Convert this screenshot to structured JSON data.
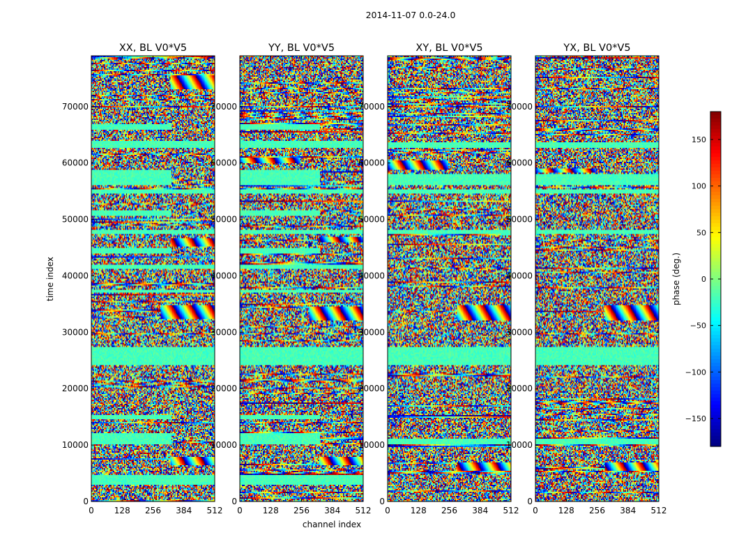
{
  "chart_data": {
    "type": "heatmap",
    "title": "2014-11-07 0.0-24.0",
    "xlabel": "channel index",
    "ylabel": "time index",
    "colorbar_label": "phase (deg.)",
    "colormap": "jet",
    "xlim": [
      0,
      512
    ],
    "ylim": [
      0,
      79000
    ],
    "color_range": [
      -180,
      180
    ],
    "x_ticks": [
      "0",
      "128",
      "256",
      "384",
      "512"
    ],
    "y_ticks": [
      "0",
      "10000",
      "20000",
      "30000",
      "40000",
      "50000",
      "60000",
      "70000"
    ],
    "colorbar_ticks": [
      "150",
      "100",
      "50",
      "0",
      "−50",
      "−100",
      "−150"
    ],
    "panels": [
      {
        "title": "XX, BL V0*V5",
        "flat_bands": [
          [
            2900,
            4600,
            0,
            512
          ],
          [
            10000,
            12200,
            0,
            330
          ],
          [
            14500,
            15300,
            0,
            330
          ],
          [
            24300,
            27500,
            0,
            512
          ],
          [
            37000,
            37600,
            0,
            512
          ],
          [
            41300,
            42000,
            0,
            512
          ],
          [
            43900,
            45000,
            0,
            330
          ],
          [
            47500,
            48200,
            0,
            512
          ],
          [
            50500,
            51700,
            0,
            330
          ],
          [
            54500,
            55200,
            0,
            512
          ],
          [
            56000,
            58800,
            0,
            330
          ],
          [
            62800,
            63900,
            0,
            512
          ],
          [
            65800,
            67000,
            0,
            330
          ]
        ],
        "fringes": [
          [
            32300,
            34800,
            290,
            512
          ],
          [
            45300,
            46600,
            330,
            512
          ],
          [
            6500,
            7800,
            330,
            512
          ],
          [
            73000,
            75500,
            330,
            512
          ]
        ]
      },
      {
        "title": "YY, BL V0*V5",
        "flat_bands": [
          [
            2900,
            4600,
            0,
            512
          ],
          [
            10000,
            12200,
            0,
            330
          ],
          [
            14500,
            15300,
            0,
            330
          ],
          [
            24300,
            27500,
            0,
            512
          ],
          [
            37000,
            37600,
            0,
            512
          ],
          [
            41300,
            42000,
            0,
            512
          ],
          [
            43900,
            45000,
            0,
            330
          ],
          [
            47500,
            48200,
            0,
            512
          ],
          [
            50500,
            51700,
            0,
            330
          ],
          [
            54500,
            55200,
            0,
            512
          ],
          [
            56000,
            58800,
            0,
            330
          ],
          [
            62800,
            63900,
            0,
            512
          ],
          [
            65800,
            67000,
            0,
            330
          ]
        ],
        "fringes": [
          [
            32000,
            34500,
            290,
            512
          ],
          [
            6500,
            7800,
            330,
            512
          ],
          [
            46000,
            47000,
            330,
            512
          ],
          [
            60000,
            61000,
            0,
            250
          ]
        ]
      },
      {
        "title": "XY, BL V0*V5",
        "flat_bands": [
          [
            24300,
            27500,
            0,
            512
          ],
          [
            47500,
            48200,
            0,
            512
          ],
          [
            54500,
            55200,
            0,
            512
          ],
          [
            56000,
            58000,
            0,
            512
          ],
          [
            62800,
            63600,
            0,
            512
          ],
          [
            10000,
            11000,
            0,
            512
          ]
        ],
        "fringes": [
          [
            32000,
            34800,
            290,
            512
          ],
          [
            5500,
            7000,
            290,
            512
          ],
          [
            58800,
            60400,
            0,
            250
          ]
        ]
      },
      {
        "title": "YX, BL V0*V5",
        "flat_bands": [
          [
            24300,
            27500,
            0,
            512
          ],
          [
            47500,
            48200,
            0,
            512
          ],
          [
            54500,
            55200,
            0,
            512
          ],
          [
            56000,
            58000,
            0,
            512
          ],
          [
            62800,
            63600,
            0,
            512
          ],
          [
            10000,
            11000,
            0,
            512
          ]
        ],
        "fringes": [
          [
            32000,
            34800,
            290,
            512
          ],
          [
            5500,
            7000,
            290,
            512
          ],
          [
            58200,
            59000,
            0,
            250
          ]
        ]
      }
    ]
  }
}
